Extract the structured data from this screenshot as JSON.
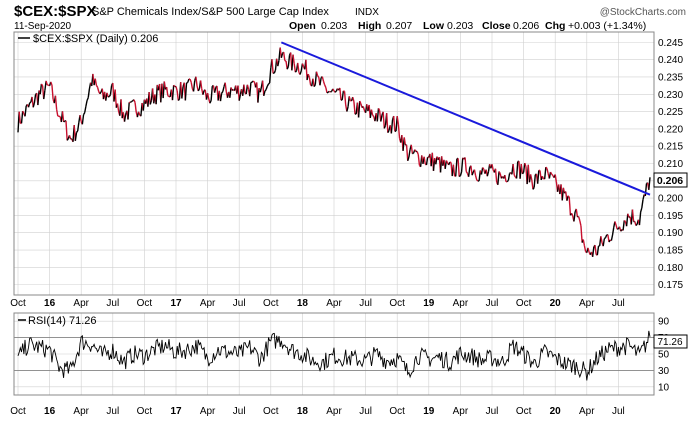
{
  "header": {
    "symbol": "$CEX:$SPX",
    "name": "S&P Chemicals Index/S&P 500 Large Cap Index",
    "exchange": "INDX",
    "date": "11-Sep-2020",
    "watermark": "@StockCharts.com",
    "ohlc": {
      "open_label": "Open",
      "open": "0.203",
      "high_label": "High",
      "high": "0.207",
      "low_label": "Low",
      "low": "0.203",
      "close_label": "Close",
      "close": "0.206",
      "chg_label": "Chg",
      "chg": "+0.003 (+1.34%)"
    }
  },
  "colors": {
    "price_up": "#000000",
    "price_down": "#c8102e",
    "trendline": "#1a1adb",
    "grid": "#d0d0d0",
    "panel_border": "#888888"
  },
  "chart_data": [
    {
      "type": "line",
      "panel": "price",
      "legend": "$CEX:$SPX (Daily) 0.206",
      "last_value_label": "0.206",
      "ylim": [
        0.172,
        0.248
      ],
      "y_ticks": [
        "0.175",
        "0.180",
        "0.185",
        "0.190",
        "0.195",
        "0.200",
        "0.205",
        "0.210",
        "0.215",
        "0.220",
        "0.225",
        "0.230",
        "0.235",
        "0.240",
        "0.245"
      ],
      "x_ticks": [
        "Oct",
        "16",
        "Apr",
        "Jul",
        "Oct",
        "17",
        "Apr",
        "Jul",
        "Oct",
        "18",
        "Apr",
        "Jul",
        "Oct",
        "19",
        "Apr",
        "Jul",
        "Oct",
        "20",
        "Apr",
        "Jul"
      ],
      "x_tick_months": [
        0,
        3,
        6,
        9,
        12,
        15,
        18,
        21,
        24,
        27,
        30,
        33,
        36,
        39,
        42,
        45,
        48,
        51,
        54,
        57
      ],
      "x": [
        "2015-09",
        "2015-10",
        "2015-11",
        "2015-12",
        "2016-01",
        "2016-02",
        "2016-03",
        "2016-04",
        "2016-05",
        "2016-06",
        "2016-07",
        "2016-08",
        "2016-09",
        "2016-10",
        "2016-11",
        "2016-12",
        "2017-01",
        "2017-02",
        "2017-03",
        "2017-04",
        "2017-05",
        "2017-06",
        "2017-07",
        "2017-08",
        "2017-09",
        "2017-10",
        "2017-11",
        "2017-12",
        "2018-01",
        "2018-02",
        "2018-03",
        "2018-04",
        "2018-05",
        "2018-06",
        "2018-07",
        "2018-08",
        "2018-09",
        "2018-10",
        "2018-11",
        "2018-12",
        "2019-01",
        "2019-02",
        "2019-03",
        "2019-04",
        "2019-05",
        "2019-06",
        "2019-07",
        "2019-08",
        "2019-09",
        "2019-10",
        "2019-11",
        "2019-12",
        "2020-01",
        "2020-02",
        "2020-03",
        "2020-04",
        "2020-05",
        "2020-06",
        "2020-07",
        "2020-08",
        "2020-09"
      ],
      "values": [
        0.222,
        0.226,
        0.23,
        0.232,
        0.224,
        0.217,
        0.222,
        0.234,
        0.229,
        0.231,
        0.224,
        0.226,
        0.227,
        0.23,
        0.231,
        0.231,
        0.231,
        0.233,
        0.229,
        0.23,
        0.231,
        0.231,
        0.232,
        0.23,
        0.237,
        0.241,
        0.239,
        0.238,
        0.235,
        0.232,
        0.23,
        0.228,
        0.226,
        0.225,
        0.224,
        0.222,
        0.221,
        0.213,
        0.212,
        0.211,
        0.21,
        0.208,
        0.209,
        0.209,
        0.207,
        0.207,
        0.206,
        0.209,
        0.208,
        0.205,
        0.207,
        0.204,
        0.2,
        0.195,
        0.184,
        0.185,
        0.189,
        0.192,
        0.195,
        0.194,
        0.206
      ],
      "trendline": {
        "from": [
          "2017-10",
          0.245
        ],
        "to": [
          "2020-09",
          0.201
        ]
      }
    },
    {
      "type": "line",
      "panel": "indicator",
      "legend": "RSI(14) 71.26",
      "last_value_label": "71.26",
      "ylim": [
        0,
        100
      ],
      "y_ticks": [
        "10",
        "30",
        "50",
        "70",
        "90"
      ],
      "reference_lines": [
        30,
        70
      ],
      "x_ticks": [
        "Oct",
        "16",
        "Apr",
        "Jul",
        "Oct",
        "17",
        "Apr",
        "Jul",
        "Oct",
        "18",
        "Apr",
        "Jul",
        "Oct",
        "19",
        "Apr",
        "Jul",
        "Oct",
        "20",
        "Apr",
        "Jul"
      ],
      "x_tick_months": [
        0,
        3,
        6,
        9,
        12,
        15,
        18,
        21,
        24,
        27,
        30,
        33,
        36,
        39,
        42,
        45,
        48,
        51,
        54,
        57
      ],
      "x": [
        "2015-09",
        "2015-10",
        "2015-11",
        "2015-12",
        "2016-01",
        "2016-02",
        "2016-03",
        "2016-04",
        "2016-05",
        "2016-06",
        "2016-07",
        "2016-08",
        "2016-09",
        "2016-10",
        "2016-11",
        "2016-12",
        "2017-01",
        "2017-02",
        "2017-03",
        "2017-04",
        "2017-05",
        "2017-06",
        "2017-07",
        "2017-08",
        "2017-09",
        "2017-10",
        "2017-11",
        "2017-12",
        "2018-01",
        "2018-02",
        "2018-03",
        "2018-04",
        "2018-05",
        "2018-06",
        "2018-07",
        "2018-08",
        "2018-09",
        "2018-10",
        "2018-11",
        "2018-12",
        "2019-01",
        "2019-02",
        "2019-03",
        "2019-04",
        "2019-05",
        "2019-06",
        "2019-07",
        "2019-08",
        "2019-09",
        "2019-10",
        "2019-11",
        "2019-12",
        "2020-01",
        "2020-02",
        "2020-03",
        "2020-04",
        "2020-05",
        "2020-06",
        "2020-07",
        "2020-08",
        "2020-09"
      ],
      "values": [
        45,
        62,
        58,
        55,
        32,
        30,
        65,
        62,
        48,
        55,
        40,
        50,
        48,
        56,
        60,
        52,
        55,
        60,
        45,
        55,
        52,
        50,
        58,
        44,
        65,
        68,
        55,
        50,
        42,
        40,
        48,
        45,
        44,
        42,
        50,
        42,
        45,
        28,
        48,
        44,
        46,
        40,
        50,
        48,
        42,
        45,
        40,
        60,
        50,
        38,
        52,
        45,
        38,
        35,
        28,
        45,
        55,
        58,
        60,
        48,
        71
      ]
    }
  ]
}
